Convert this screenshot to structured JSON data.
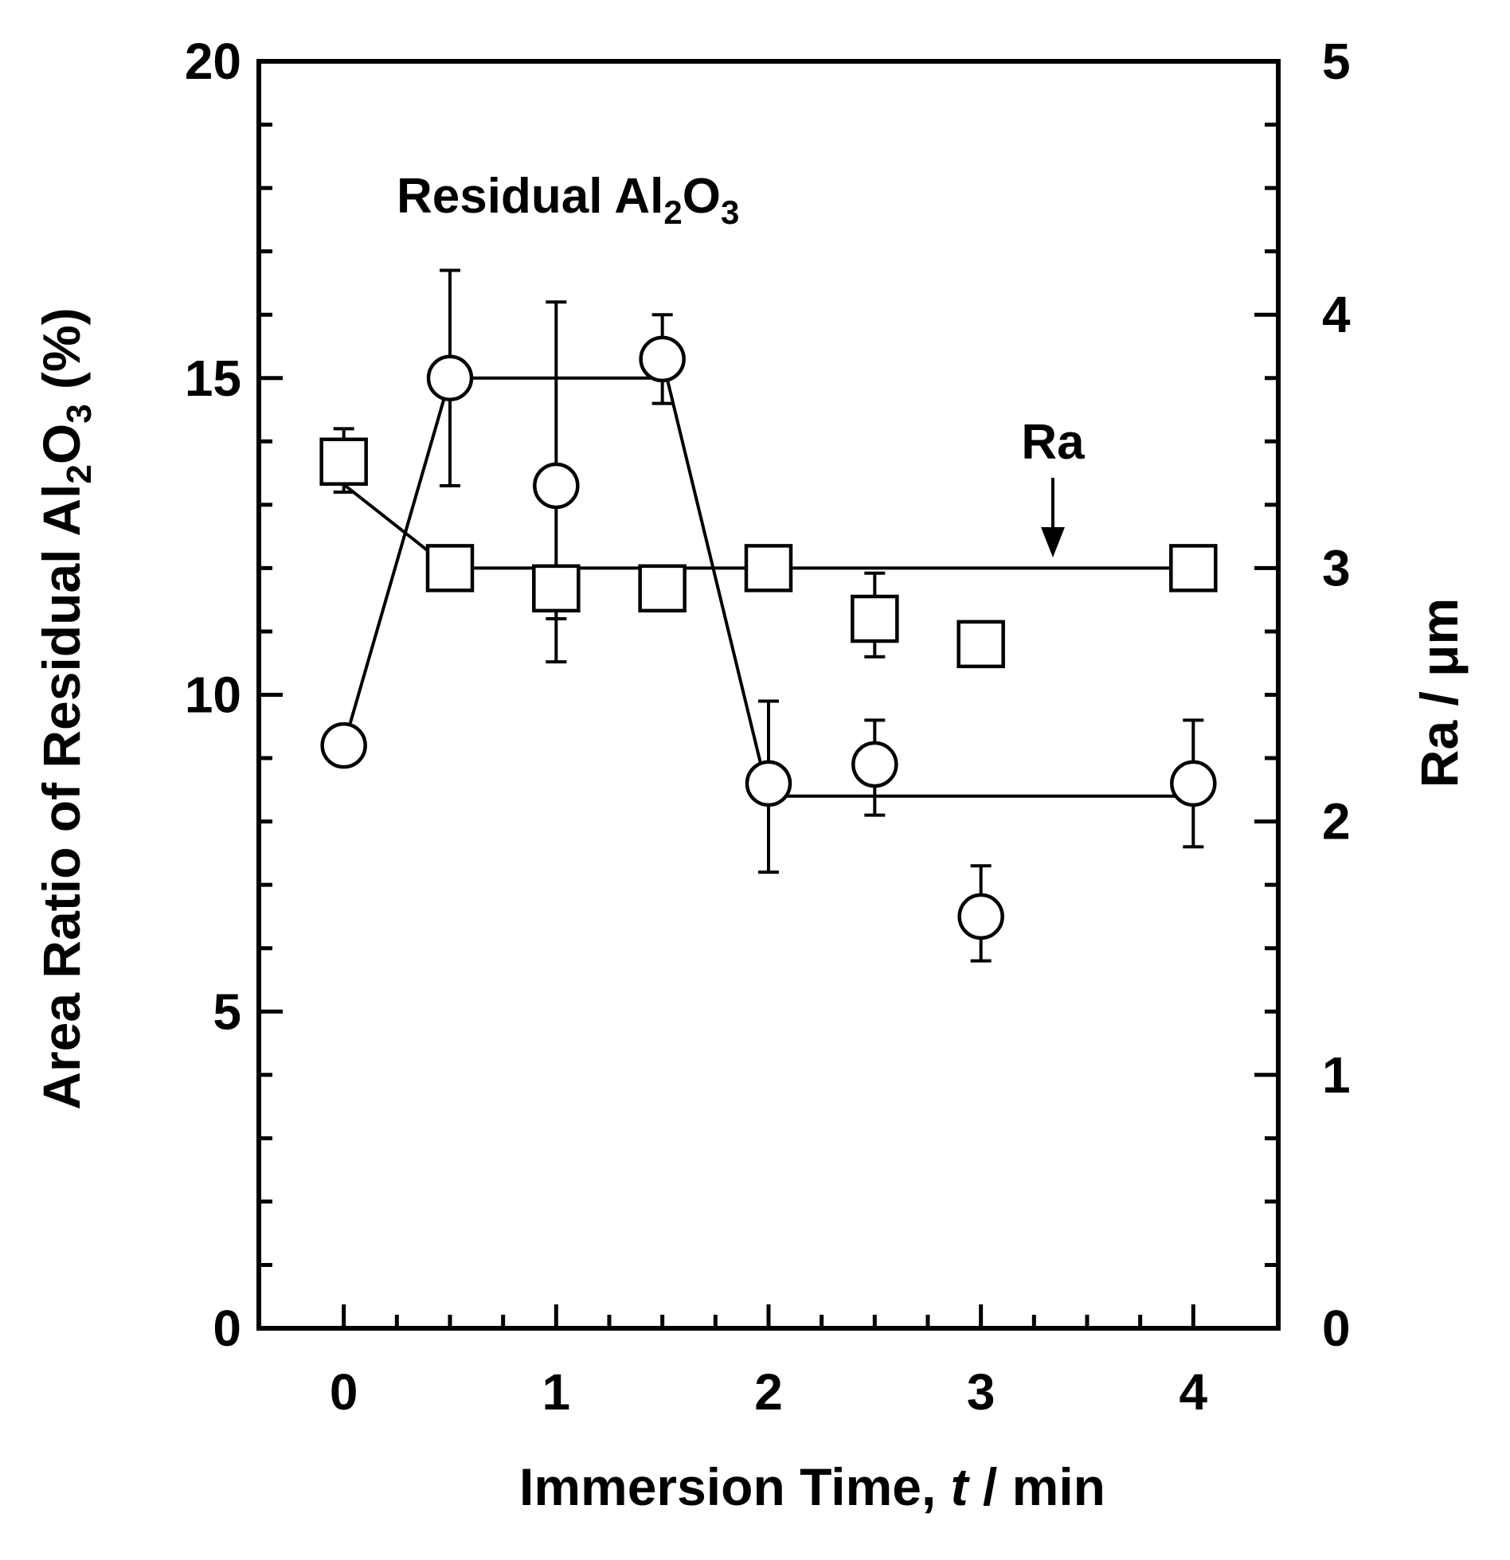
{
  "chart_data": {
    "type": "scatter",
    "title": "",
    "xlabel": {
      "main": "Immersion Time, ",
      "var": "t",
      "unit": " / min"
    },
    "ylabel_left": {
      "pre": "Area Ratio of Residual Al",
      "sub1": "2",
      "mid": "O",
      "sub2": "3",
      "post": " (%)"
    },
    "ylabel_right": "Ra / μm",
    "xlim": [
      -0.4,
      4.4
    ],
    "ylim_left": [
      0,
      20
    ],
    "ylim_right": [
      0,
      5
    ],
    "x_ticks": [
      0,
      1,
      2,
      3,
      4
    ],
    "x_tick_labels": [
      "0",
      "1",
      "2",
      "3",
      "4"
    ],
    "y_left_ticks": [
      0,
      5,
      10,
      15,
      20
    ],
    "y_left_tick_labels": [
      "0",
      "5",
      "10",
      "15",
      "20"
    ],
    "y_right_ticks": [
      0,
      1,
      2,
      3,
      4,
      5
    ],
    "y_right_tick_labels": [
      "0",
      "1",
      "2",
      "3",
      "4",
      "5"
    ],
    "grid": false,
    "series": [
      {
        "marker": "circle",
        "axis": "left",
        "x": [
          0,
          0.5,
          1,
          1.5,
          2,
          2.5,
          3,
          4
        ],
        "y": [
          9.2,
          15.0,
          13.3,
          15.3,
          8.6,
          8.9,
          6.5,
          8.6
        ],
        "y_err_low": [
          null,
          13.3,
          11.2,
          14.6,
          7.2,
          8.1,
          5.8,
          7.6
        ],
        "y_err_high": [
          null,
          16.7,
          16.2,
          16.0,
          9.9,
          9.6,
          7.3,
          9.6
        ],
        "connected_path": [
          [
            0,
            9.2
          ],
          [
            0.5,
            15.0
          ],
          [
            1.5,
            15.0
          ],
          [
            1.5,
            15.3
          ],
          [
            2,
            8.4
          ],
          [
            4,
            8.4
          ]
        ]
      },
      {
        "marker": "square",
        "axis": "right",
        "x": [
          0,
          0.5,
          1,
          1.5,
          2,
          2.5,
          3,
          4
        ],
        "y": [
          3.42,
          3.0,
          2.92,
          2.92,
          3.0,
          2.8,
          2.7,
          3.0
        ],
        "y_err_low": [
          3.3,
          null,
          2.63,
          null,
          null,
          2.65,
          null,
          null
        ],
        "y_err_high": [
          3.55,
          null,
          null,
          null,
          null,
          2.98,
          null,
          null
        ],
        "connected_path": [
          [
            0,
            3.33
          ],
          [
            0.5,
            3.0
          ],
          [
            4,
            3.0
          ]
        ]
      }
    ],
    "annotations": [
      {
        "text_pre": "Residual Al",
        "sub1": "2",
        "mid": "O",
        "sub2": "3"
      },
      {
        "text": "Ra",
        "arrow": true
      }
    ]
  }
}
